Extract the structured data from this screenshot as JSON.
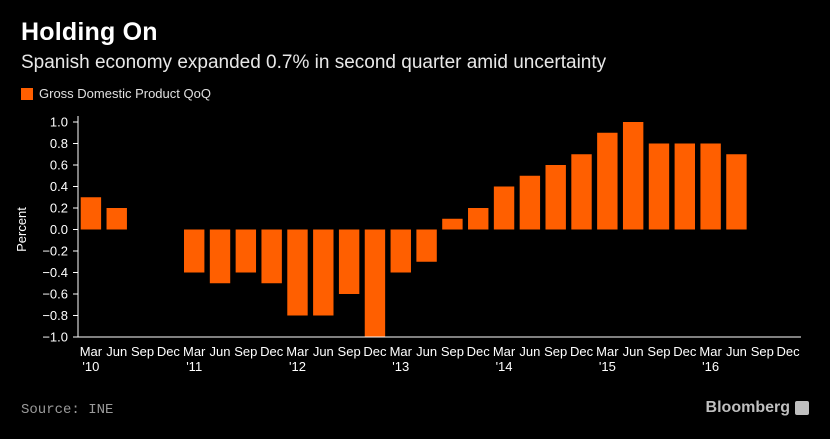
{
  "header": {
    "title": "Holding On",
    "subtitle": "Spanish economy expanded 0.7% in second quarter amid uncertainty"
  },
  "legend": {
    "label": "Gross Domestic Product QoQ"
  },
  "footer": {
    "source": "Source: INE",
    "brand": "Bloomberg"
  },
  "colors": {
    "bar": "#ff5f00",
    "axis": "#ffffff",
    "background": "#000000"
  },
  "chart_data": {
    "type": "bar",
    "title": "Holding On",
    "subtitle": "Spanish economy expanded 0.7% in second quarter amid uncertainty",
    "xlabel": "",
    "ylabel": "Percent",
    "ylim": [
      -1.0,
      1.0
    ],
    "yticks": [
      1.0,
      0.8,
      0.6,
      0.4,
      0.2,
      0.0,
      -0.2,
      -0.4,
      -0.6,
      -0.8,
      -1.0
    ],
    "ytick_labels": [
      "1.0",
      "0.8",
      "0.6",
      "0.4",
      "0.2",
      "0.0",
      "−0.2",
      "−0.4",
      "−0.6",
      "−0.8",
      "−1.0"
    ],
    "categories": [
      "Mar",
      "Jun",
      "Sep",
      "Dec",
      "Mar",
      "Jun",
      "Sep",
      "Dec",
      "Mar",
      "Jun",
      "Sep",
      "Dec",
      "Mar",
      "Jun",
      "Sep",
      "Dec",
      "Mar",
      "Jun",
      "Sep",
      "Dec",
      "Mar",
      "Jun",
      "Sep",
      "Dec",
      "Mar",
      "Jun",
      "Sep",
      "Dec"
    ],
    "year_labels": [
      {
        "index": 0,
        "label": "'10"
      },
      {
        "index": 4,
        "label": "'11"
      },
      {
        "index": 8,
        "label": "'12"
      },
      {
        "index": 12,
        "label": "'13"
      },
      {
        "index": 16,
        "label": "'14"
      },
      {
        "index": 20,
        "label": "'15"
      },
      {
        "index": 24,
        "label": "'16"
      }
    ],
    "series": [
      {
        "name": "Gross Domestic Product QoQ",
        "values": [
          0.3,
          0.2,
          null,
          null,
          -0.4,
          -0.5,
          -0.4,
          -0.5,
          -0.8,
          -0.8,
          -0.6,
          -1.0,
          -0.4,
          -0.3,
          0.1,
          0.2,
          0.4,
          0.5,
          0.6,
          0.7,
          0.9,
          1.0,
          0.8,
          0.8,
          0.8,
          0.7,
          null,
          null
        ]
      }
    ],
    "grid": false,
    "legend_position": "top-left"
  }
}
